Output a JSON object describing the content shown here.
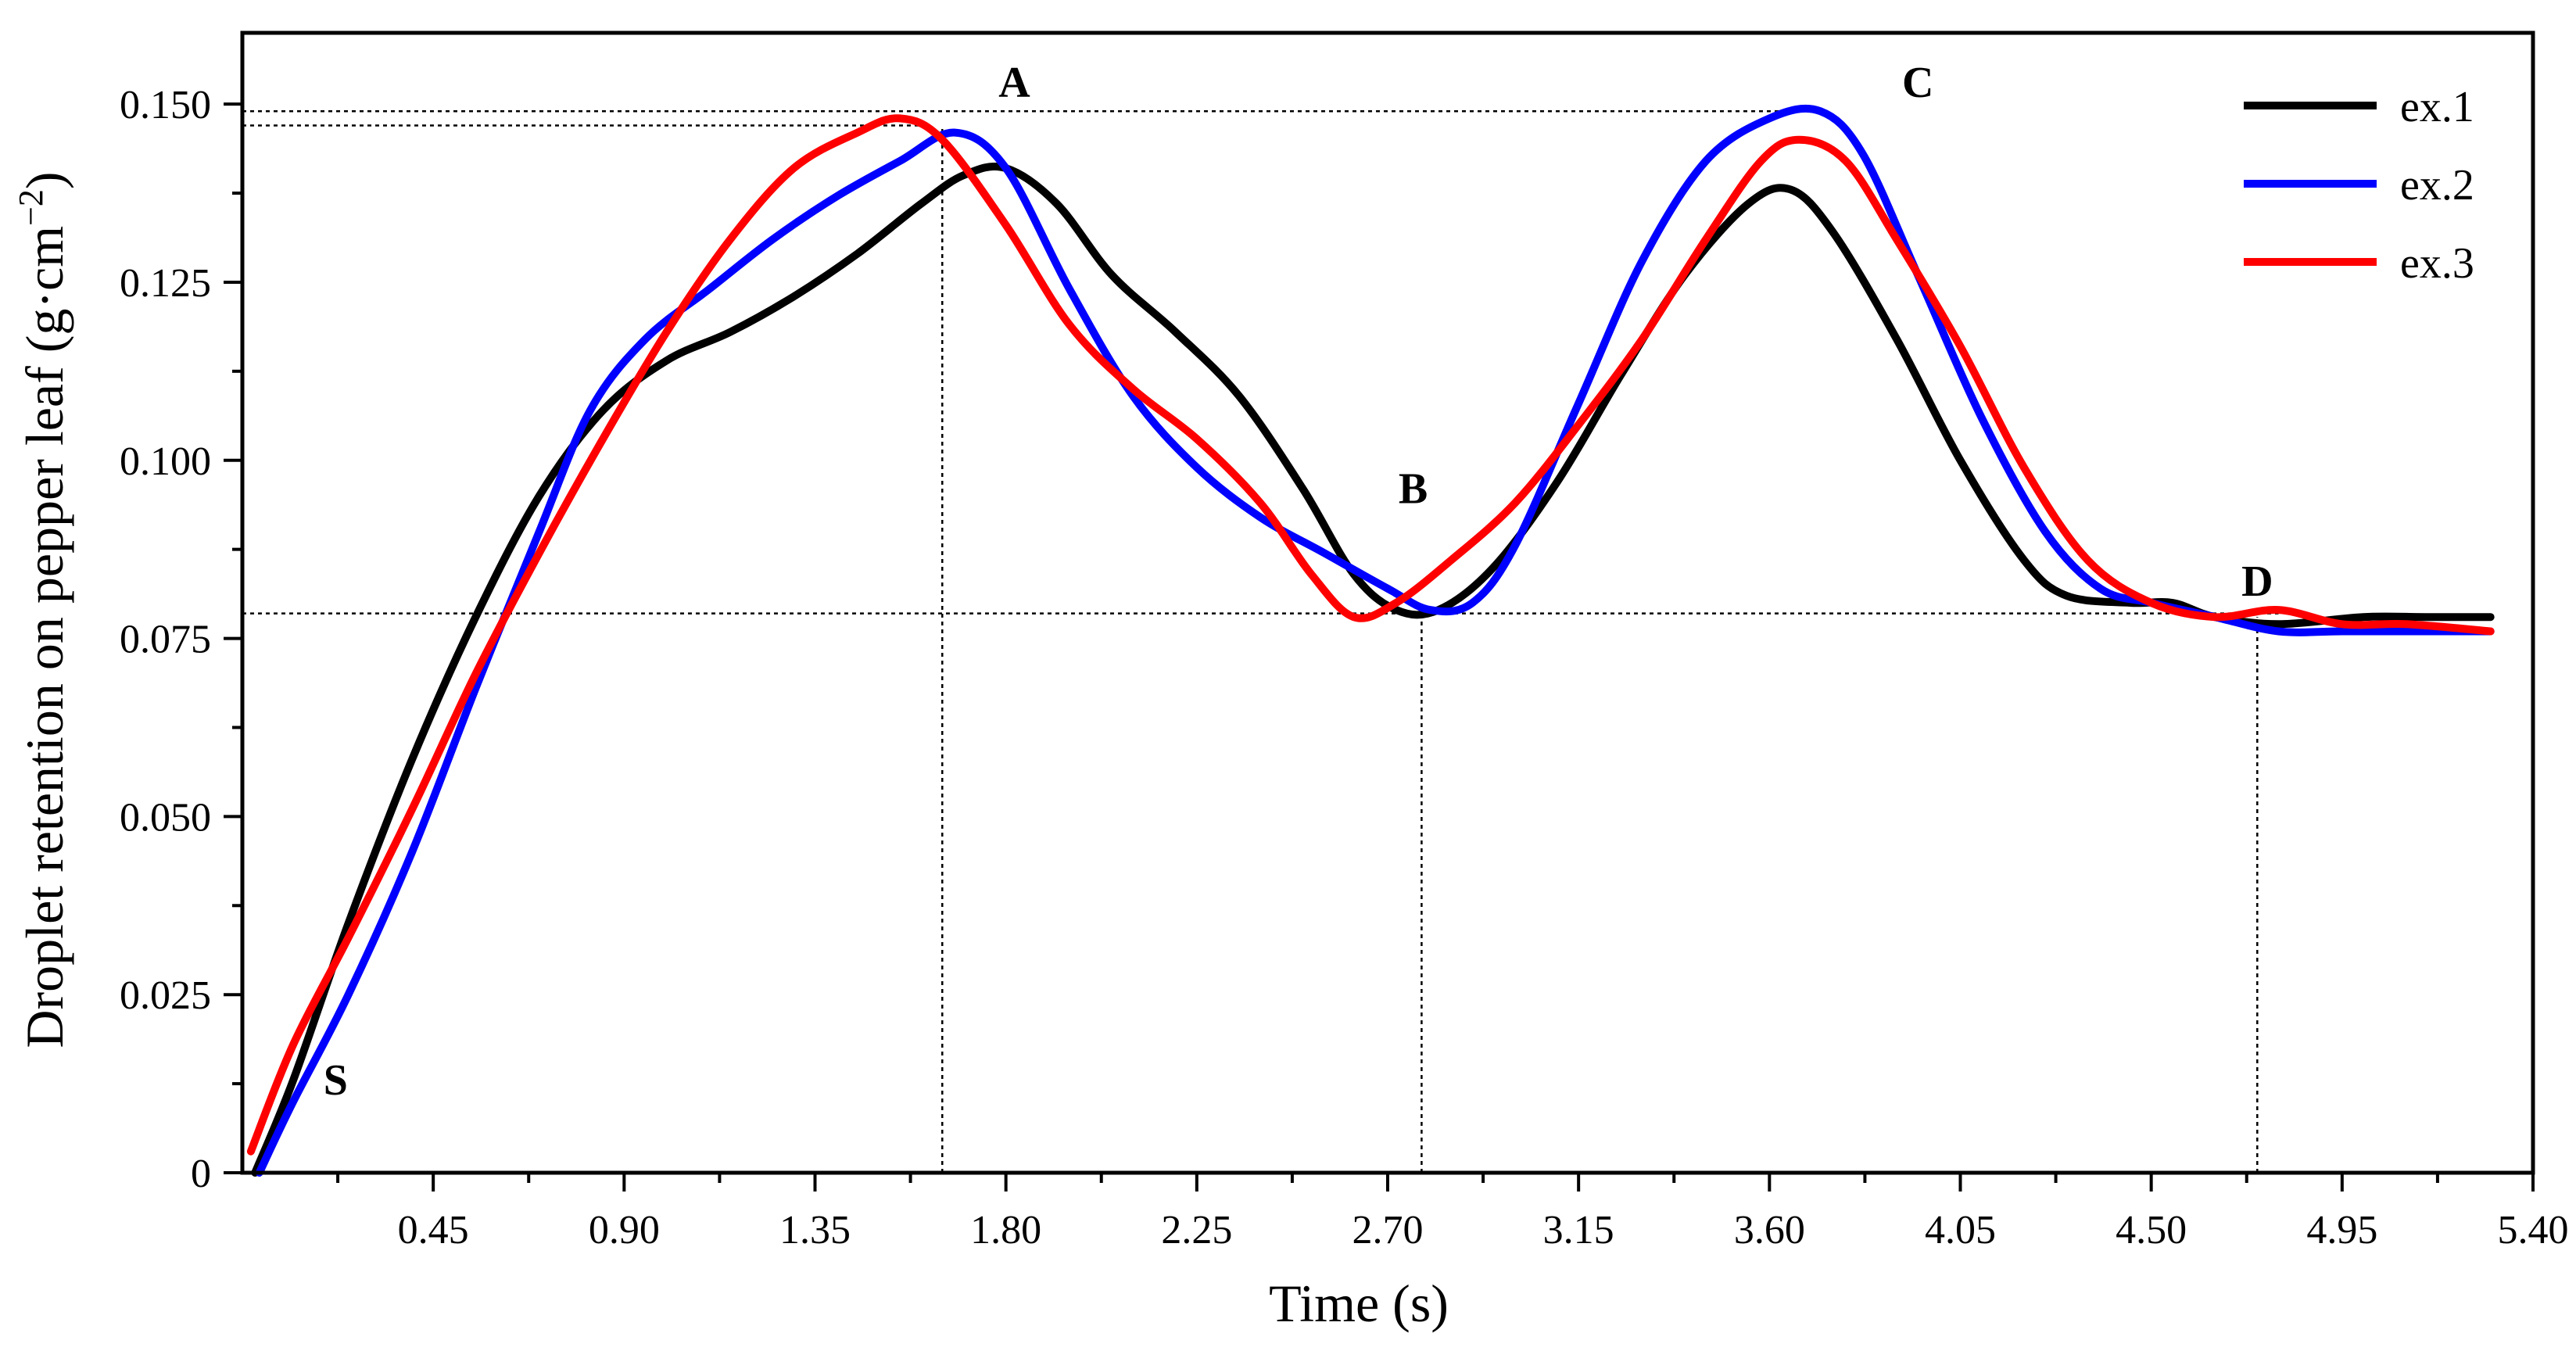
{
  "chart_data": {
    "type": "line",
    "title": "",
    "xlabel": "Time (s)",
    "ylabel": "Droplet retention on pepper leaf (g·cm",
    "ylabel_exponent": "−2",
    "ylabel_close": ")",
    "xlim": [
      0.0,
      5.4
    ],
    "ylim": [
      0.0,
      0.16
    ],
    "grid": false,
    "legend_position": "top-right",
    "x_ticks": [
      {
        "value": 0.45,
        "label": "0.45"
      },
      {
        "value": 0.9,
        "label": "0.90"
      },
      {
        "value": 1.35,
        "label": "1.35"
      },
      {
        "value": 1.8,
        "label": "1.80"
      },
      {
        "value": 2.25,
        "label": "2.25"
      },
      {
        "value": 2.7,
        "label": "2.70"
      },
      {
        "value": 3.15,
        "label": "3.15"
      },
      {
        "value": 3.6,
        "label": "3.60"
      },
      {
        "value": 4.05,
        "label": "4.05"
      },
      {
        "value": 4.5,
        "label": "4.50"
      },
      {
        "value": 4.95,
        "label": "4.95"
      },
      {
        "value": 5.4,
        "label": "5.40"
      }
    ],
    "y_ticks": [
      {
        "value": 0.0,
        "label": "0"
      },
      {
        "value": 0.025,
        "label": "0.025"
      },
      {
        "value": 0.05,
        "label": "0.050"
      },
      {
        "value": 0.075,
        "label": "0.075"
      },
      {
        "value": 0.1,
        "label": "0.100"
      },
      {
        "value": 0.125,
        "label": "0.125"
      },
      {
        "value": 0.15,
        "label": "0.150"
      }
    ],
    "series": [
      {
        "name": "ex.1",
        "color": "#000000",
        "points": [
          [
            0.03,
            0.0
          ],
          [
            0.12,
            0.013
          ],
          [
            0.25,
            0.035
          ],
          [
            0.4,
            0.058
          ],
          [
            0.55,
            0.078
          ],
          [
            0.7,
            0.095
          ],
          [
            0.85,
            0.107
          ],
          [
            1.0,
            0.114
          ],
          [
            1.15,
            0.118
          ],
          [
            1.3,
            0.123
          ],
          [
            1.45,
            0.129
          ],
          [
            1.6,
            0.136
          ],
          [
            1.7,
            0.14
          ],
          [
            1.8,
            0.141
          ],
          [
            1.92,
            0.136
          ],
          [
            2.05,
            0.126
          ],
          [
            2.2,
            0.118
          ],
          [
            2.35,
            0.109
          ],
          [
            2.5,
            0.096
          ],
          [
            2.62,
            0.084
          ],
          [
            2.72,
            0.079
          ],
          [
            2.82,
            0.079
          ],
          [
            2.95,
            0.085
          ],
          [
            3.1,
            0.097
          ],
          [
            3.25,
            0.112
          ],
          [
            3.4,
            0.126
          ],
          [
            3.55,
            0.136
          ],
          [
            3.65,
            0.138
          ],
          [
            3.75,
            0.132
          ],
          [
            3.9,
            0.117
          ],
          [
            4.05,
            0.1
          ],
          [
            4.2,
            0.086
          ],
          [
            4.3,
            0.081
          ],
          [
            4.45,
            0.08
          ],
          [
            4.55,
            0.08
          ],
          [
            4.65,
            0.078
          ],
          [
            4.8,
            0.077
          ],
          [
            5.0,
            0.078
          ],
          [
            5.15,
            0.078
          ],
          [
            5.3,
            0.078
          ]
        ]
      },
      {
        "name": "ex.2",
        "color": "#0000ff",
        "points": [
          [
            0.04,
            0.0
          ],
          [
            0.12,
            0.01
          ],
          [
            0.25,
            0.025
          ],
          [
            0.4,
            0.045
          ],
          [
            0.55,
            0.068
          ],
          [
            0.7,
            0.09
          ],
          [
            0.82,
            0.107
          ],
          [
            0.95,
            0.117
          ],
          [
            1.1,
            0.124
          ],
          [
            1.25,
            0.131
          ],
          [
            1.4,
            0.137
          ],
          [
            1.55,
            0.142
          ],
          [
            1.68,
            0.146
          ],
          [
            1.8,
            0.141
          ],
          [
            1.95,
            0.124
          ],
          [
            2.1,
            0.109
          ],
          [
            2.25,
            0.099
          ],
          [
            2.4,
            0.092
          ],
          [
            2.55,
            0.087
          ],
          [
            2.7,
            0.082
          ],
          [
            2.8,
            0.079
          ],
          [
            2.9,
            0.08
          ],
          [
            3.0,
            0.088
          ],
          [
            3.15,
            0.108
          ],
          [
            3.3,
            0.128
          ],
          [
            3.45,
            0.142
          ],
          [
            3.6,
            0.148
          ],
          [
            3.72,
            0.149
          ],
          [
            3.82,
            0.143
          ],
          [
            3.95,
            0.126
          ],
          [
            4.1,
            0.106
          ],
          [
            4.25,
            0.09
          ],
          [
            4.38,
            0.082
          ],
          [
            4.5,
            0.08
          ],
          [
            4.65,
            0.078
          ],
          [
            4.8,
            0.076
          ],
          [
            4.95,
            0.076
          ],
          [
            5.1,
            0.076
          ],
          [
            5.3,
            0.076
          ]
        ]
      },
      {
        "name": "ex.3",
        "color": "#ff0000",
        "points": [
          [
            0.02,
            0.003
          ],
          [
            0.12,
            0.018
          ],
          [
            0.25,
            0.033
          ],
          [
            0.4,
            0.051
          ],
          [
            0.55,
            0.07
          ],
          [
            0.7,
            0.087
          ],
          [
            0.85,
            0.103
          ],
          [
            1.0,
            0.118
          ],
          [
            1.15,
            0.131
          ],
          [
            1.3,
            0.141
          ],
          [
            1.45,
            0.146
          ],
          [
            1.55,
            0.148
          ],
          [
            1.65,
            0.145
          ],
          [
            1.8,
            0.133
          ],
          [
            1.95,
            0.119
          ],
          [
            2.1,
            0.11
          ],
          [
            2.25,
            0.103
          ],
          [
            2.4,
            0.094
          ],
          [
            2.52,
            0.084
          ],
          [
            2.62,
            0.078
          ],
          [
            2.72,
            0.08
          ],
          [
            2.85,
            0.086
          ],
          [
            3.0,
            0.094
          ],
          [
            3.15,
            0.105
          ],
          [
            3.3,
            0.117
          ],
          [
            3.45,
            0.131
          ],
          [
            3.58,
            0.142
          ],
          [
            3.67,
            0.145
          ],
          [
            3.78,
            0.142
          ],
          [
            3.9,
            0.131
          ],
          [
            4.05,
            0.116
          ],
          [
            4.2,
            0.099
          ],
          [
            4.35,
            0.086
          ],
          [
            4.5,
            0.08
          ],
          [
            4.65,
            0.078
          ],
          [
            4.8,
            0.079
          ],
          [
            4.95,
            0.077
          ],
          [
            5.1,
            0.077
          ],
          [
            5.3,
            0.076
          ]
        ]
      }
    ],
    "annotations": [
      {
        "label": "S",
        "x": 0.22,
        "y": 0.011
      },
      {
        "label": "A",
        "x": 1.82,
        "y": 0.151
      },
      {
        "label": "B",
        "x": 2.76,
        "y": 0.094
      },
      {
        "label": "C",
        "x": 3.95,
        "y": 0.151
      },
      {
        "label": "D",
        "x": 4.75,
        "y": 0.081
      }
    ],
    "reference_lines": [
      {
        "orientation": "horizontal",
        "y": 0.149,
        "x_from": 0.0,
        "x_to": 3.72
      },
      {
        "orientation": "horizontal",
        "y": 0.147,
        "x_from": 0.0,
        "x_to": 1.6
      },
      {
        "orientation": "horizontal",
        "y": 0.0785,
        "x_from": 0.0,
        "x_to": 4.8
      },
      {
        "orientation": "vertical",
        "x": 1.65,
        "y_from": 0.0,
        "y_to": 0.147
      },
      {
        "orientation": "vertical",
        "x": 2.78,
        "y_from": 0.0,
        "y_to": 0.0785
      },
      {
        "orientation": "vertical",
        "x": 4.75,
        "y_from": 0.0,
        "y_to": 0.078
      }
    ]
  }
}
